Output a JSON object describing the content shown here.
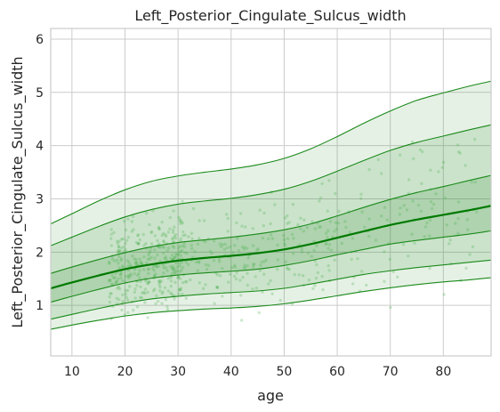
{
  "chart_data": {
    "type": "line",
    "title": "Left_Posterior_Cingulate_Sulcus_width",
    "xlabel": "age",
    "ylabel": "Left_Posterior_Cingulate_Sulcus_width",
    "xlim": [
      6,
      89
    ],
    "ylim": [
      0.05,
      6.2
    ],
    "xticks": [
      10,
      20,
      30,
      40,
      50,
      60,
      70,
      80
    ],
    "yticks": [
      1,
      2,
      3,
      4,
      5,
      6
    ],
    "grid": true,
    "legend": "none",
    "colors": {
      "line": "#1a8a1a",
      "median": "#007a00",
      "band": "#2e8b2e",
      "points": "#4caf50",
      "grid": "#cccccc",
      "frame": "#cccccc"
    },
    "x": [
      6,
      10,
      15,
      20,
      25,
      30,
      35,
      40,
      45,
      50,
      55,
      60,
      65,
      70,
      75,
      80,
      85,
      89
    ],
    "series": [
      {
        "quantile": 0.01,
        "values": [
          0.55,
          0.63,
          0.72,
          0.8,
          0.86,
          0.9,
          0.93,
          0.95,
          0.98,
          1.03,
          1.1,
          1.18,
          1.26,
          1.33,
          1.39,
          1.44,
          1.48,
          1.52
        ]
      },
      {
        "quantile": 0.05,
        "values": [
          0.74,
          0.83,
          0.94,
          1.04,
          1.12,
          1.17,
          1.21,
          1.24,
          1.27,
          1.32,
          1.4,
          1.49,
          1.58,
          1.65,
          1.71,
          1.76,
          1.81,
          1.85
        ]
      },
      {
        "quantile": 0.25,
        "values": [
          1.06,
          1.17,
          1.3,
          1.42,
          1.51,
          1.57,
          1.61,
          1.64,
          1.68,
          1.75,
          1.84,
          1.95,
          2.05,
          2.15,
          2.22,
          2.28,
          2.34,
          2.4
        ]
      },
      {
        "quantile": 0.5,
        "values": [
          1.32,
          1.43,
          1.56,
          1.68,
          1.77,
          1.84,
          1.89,
          1.93,
          1.98,
          2.05,
          2.15,
          2.27,
          2.39,
          2.51,
          2.61,
          2.7,
          2.79,
          2.87
        ]
      },
      {
        "quantile": 0.75,
        "values": [
          1.6,
          1.72,
          1.86,
          1.99,
          2.1,
          2.18,
          2.23,
          2.28,
          2.34,
          2.42,
          2.53,
          2.68,
          2.84,
          2.99,
          3.12,
          3.23,
          3.35,
          3.44
        ]
      },
      {
        "quantile": 0.95,
        "values": [
          2.12,
          2.28,
          2.48,
          2.66,
          2.8,
          2.9,
          2.96,
          3.01,
          3.08,
          3.18,
          3.33,
          3.52,
          3.72,
          3.91,
          4.06,
          4.18,
          4.3,
          4.39
        ]
      },
      {
        "quantile": 0.99,
        "values": [
          2.53,
          2.72,
          2.96,
          3.17,
          3.33,
          3.43,
          3.5,
          3.56,
          3.64,
          3.76,
          3.94,
          4.17,
          4.42,
          4.65,
          4.85,
          4.99,
          5.12,
          5.21
        ]
      }
    ]
  }
}
